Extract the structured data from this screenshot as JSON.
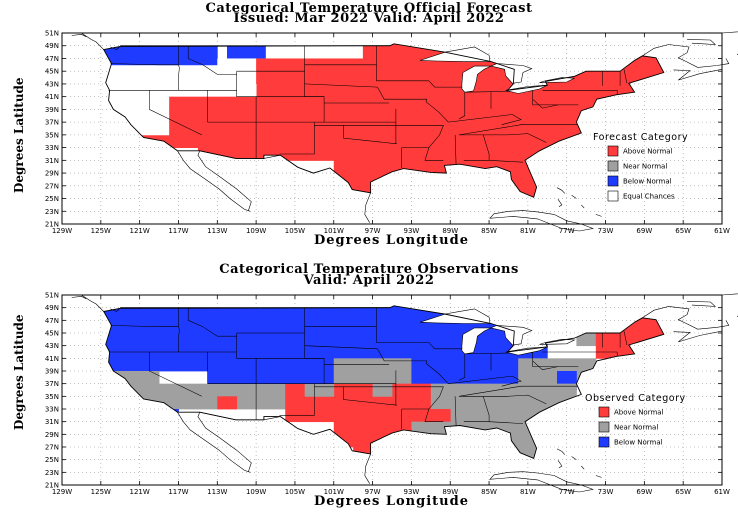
{
  "maps": [
    {
      "title_line1": "Categorical Temperature Official Forecast",
      "title_line2": "Issued: Mar 2022 Valid: April 2022",
      "ylabel": "Degrees Latitude",
      "xlabel": "Degrees Longitude",
      "legend": {
        "title": "Forecast Category",
        "items": [
          {
            "label": "Above Normal",
            "color": "#ff3b3b"
          },
          {
            "label": "Near Normal",
            "color": "#a0a0a0"
          },
          {
            "label": "Below Normal",
            "color": "#1f3bff"
          },
          {
            "label": "Equal Chances",
            "color": "#ffffff"
          }
        ]
      }
    },
    {
      "title_line1": "Categorical Temperature Observations",
      "title_line2": "Valid: April 2022",
      "ylabel": "Degrees Latitude",
      "xlabel": "Degrees Longitude",
      "legend": {
        "title": "Observed Category",
        "items": [
          {
            "label": "Above Normal",
            "color": "#ff3b3b"
          },
          {
            "label": "Near Normal",
            "color": "#a0a0a0"
          },
          {
            "label": "Below Normal",
            "color": "#1f3bff"
          }
        ]
      }
    }
  ],
  "axes": {
    "lat_ticks": [
      "51N",
      "49N",
      "47N",
      "45N",
      "43N",
      "41N",
      "39N",
      "37N",
      "35N",
      "33N",
      "31N",
      "29N",
      "27N",
      "25N",
      "23N",
      "21N"
    ],
    "lon_ticks": [
      "129W",
      "125W",
      "121W",
      "117W",
      "113W",
      "109W",
      "105W",
      "101W",
      "97W",
      "93W",
      "89W",
      "85W",
      "81W",
      "77W",
      "73W",
      "69W",
      "65W",
      "61W"
    ]
  }
}
